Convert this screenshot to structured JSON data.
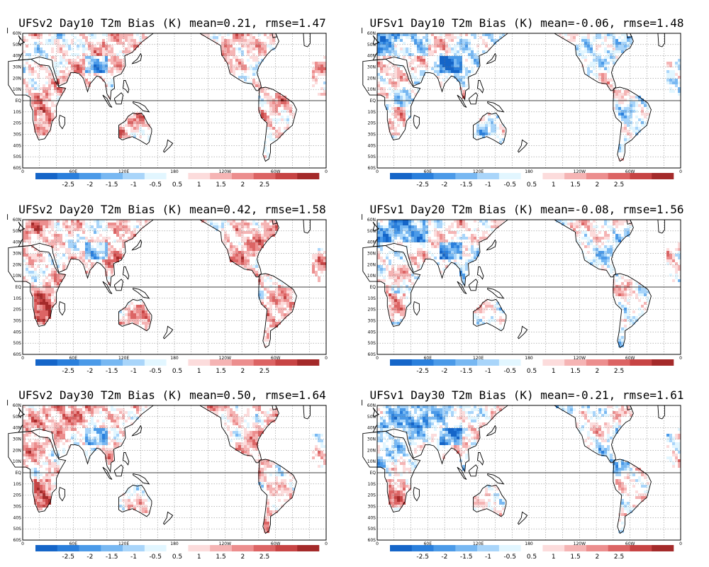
{
  "panels": [
    {
      "title": "UFSv2 Day10 T2m Bias (K) mean=0.21, rmse=1.47",
      "model": "UFSv2",
      "day": 10,
      "mean": 0.21,
      "rmse": 1.47
    },
    {
      "title": "UFSv1 Day10 T2m Bias (K) mean=-0.06, rmse=1.48",
      "model": "UFSv1",
      "day": 10,
      "mean": -0.06,
      "rmse": 1.48
    },
    {
      "title": "UFSv2 Day20 T2m Bias (K) mean=0.42, rmse=1.58",
      "model": "UFSv2",
      "day": 20,
      "mean": 0.42,
      "rmse": 1.58
    },
    {
      "title": "UFSv1 Day20 T2m Bias (K) mean=-0.08, rmse=1.56",
      "model": "UFSv1",
      "day": 20,
      "mean": -0.08,
      "rmse": 1.56
    },
    {
      "title": "UFSv2 Day30 T2m Bias (K) mean=0.50, rmse=1.64",
      "model": "UFSv2",
      "day": 30,
      "mean": 0.5,
      "rmse": 1.64
    },
    {
      "title": "UFSv1 Day30 T2m Bias (K) mean=-0.21, rmse=1.61",
      "model": "UFSv1",
      "day": 30,
      "mean": -0.21,
      "rmse": 1.61
    }
  ],
  "lat_labels": [
    "60N",
    "50N",
    "40N",
    "30N",
    "20N",
    "10N",
    "EQ",
    "10S",
    "20S",
    "30S",
    "40S",
    "50S",
    "60S"
  ],
  "lon_labels": [
    "0",
    "60E",
    "120E",
    "180",
    "120W",
    "60W",
    "0"
  ],
  "colorbar": {
    "labels": [
      "-2.5",
      "-2",
      "-1.5",
      "-1",
      "-0.5",
      "0.5",
      "1",
      "1.5",
      "2",
      "2.5"
    ],
    "colors": [
      "#1565c8",
      "#2a7fdc",
      "#4b9ae8",
      "#78b8f2",
      "#a9d5fa",
      "#e2f6ff",
      "#ffffff",
      "#fcdcdc",
      "#f5b4b4",
      "#ec8e8e",
      "#dc6464",
      "#c74444",
      "#a42a2a"
    ]
  }
}
